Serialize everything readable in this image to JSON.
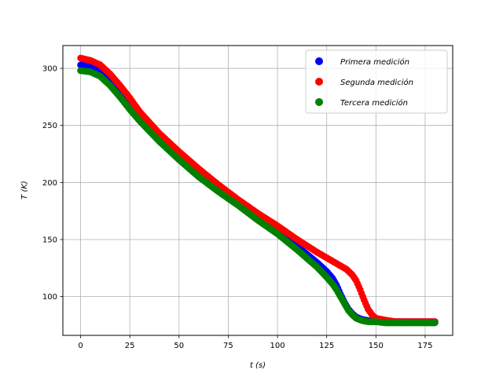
{
  "chart_data": {
    "type": "scatter",
    "title": "",
    "xlabel": "t (s)",
    "ylabel": "T (K)",
    "xlim": [
      -9,
      189
    ],
    "ylim": [
      66,
      320
    ],
    "xticks": [
      0,
      25,
      50,
      75,
      100,
      125,
      150,
      175
    ],
    "yticks": [
      100,
      150,
      200,
      250,
      300
    ],
    "grid": true,
    "legend_position": "top-right",
    "series": [
      {
        "name": "Primera medición",
        "color": "#0000ff",
        "x": [
          0,
          5,
          10,
          15,
          20,
          25,
          30,
          40,
          50,
          60,
          70,
          80,
          90,
          100,
          110,
          120,
          125,
          128,
          130,
          132,
          134,
          136,
          138,
          140,
          143,
          146,
          150,
          155,
          160,
          170,
          180
        ],
        "y": [
          303,
          302,
          298,
          290,
          279,
          268,
          257,
          238,
          222,
          208,
          194,
          181,
          168,
          156,
          144,
          130,
          122,
          116,
          110,
          102,
          95,
          89,
          85,
          82,
          80,
          79,
          78,
          78,
          78,
          78,
          78
        ]
      },
      {
        "name": "Segunda medición",
        "color": "#ff0000",
        "x": [
          0,
          5,
          10,
          15,
          20,
          25,
          30,
          40,
          50,
          60,
          70,
          80,
          90,
          100,
          110,
          120,
          125,
          130,
          135,
          138,
          140,
          142,
          144,
          146,
          148,
          150,
          153,
          156,
          160,
          170,
          180
        ],
        "y": [
          309,
          307,
          303,
          295,
          285,
          274,
          262,
          243,
          227,
          212,
          198,
          185,
          173,
          162,
          150,
          139,
          134,
          129,
          124,
          119,
          114,
          106,
          97,
          89,
          84,
          81,
          80,
          79,
          78,
          78,
          78
        ]
      },
      {
        "name": "Tercera medición",
        "color": "#008000",
        "x": [
          0,
          5,
          10,
          15,
          20,
          25,
          30,
          40,
          50,
          60,
          70,
          80,
          90,
          100,
          110,
          120,
          125,
          128,
          130,
          132,
          134,
          136,
          138,
          140,
          143,
          146,
          150,
          155,
          160,
          170,
          180
        ],
        "y": [
          298,
          297,
          293,
          285,
          275,
          264,
          254,
          236,
          220,
          205,
          192,
          180,
          167,
          155,
          141,
          126,
          117,
          111,
          106,
          100,
          94,
          88,
          84,
          81,
          79,
          78,
          78,
          77,
          77,
          77,
          77
        ]
      }
    ]
  }
}
